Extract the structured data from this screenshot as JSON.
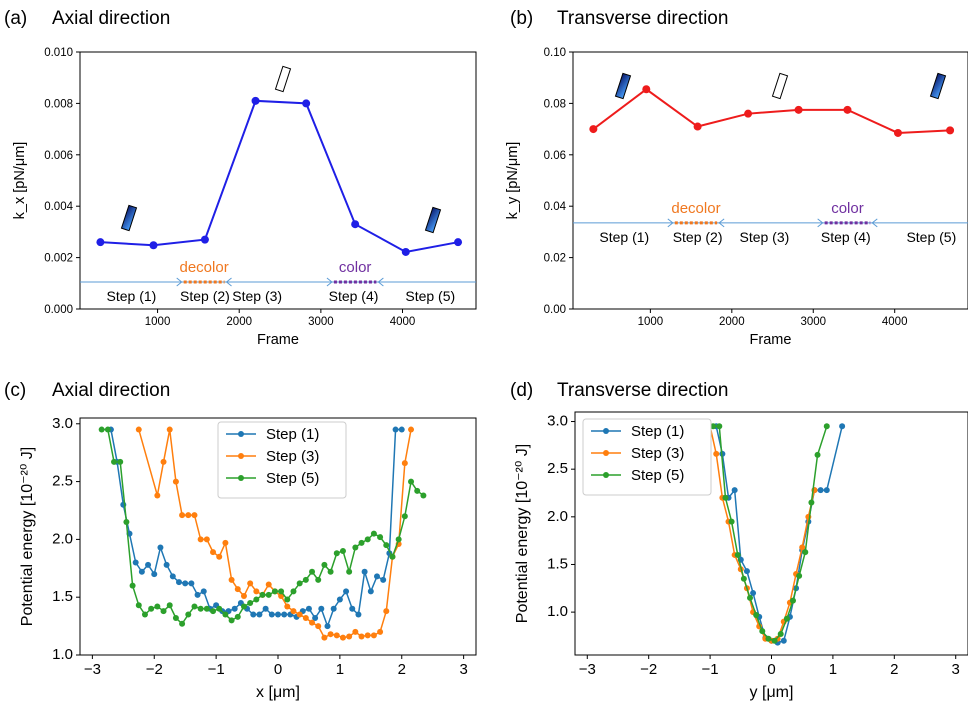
{
  "figure": {
    "panel_a": {
      "tag": "(a)",
      "title": "Axial direction"
    },
    "panel_b": {
      "tag": "(b)",
      "title": "Transverse direction"
    },
    "panel_c": {
      "tag": "(c)",
      "title": "Axial direction"
    },
    "panel_d": {
      "tag": "(d)",
      "title": "Transverse direction"
    }
  },
  "chart_data": [
    {
      "id": "a",
      "type": "line",
      "title": "Axial direction",
      "xlabel": "Frame",
      "ylabel": "k_x [pN/μm]",
      "xlim": [
        50,
        4900
      ],
      "ylim": [
        0,
        0.01
      ],
      "xticks": [
        1000,
        2000,
        3000,
        4000
      ],
      "yticks": [
        "0.000",
        "0.002",
        "0.004",
        "0.006",
        "0.008",
        "0.010"
      ],
      "yticks_values": [
        0,
        0.002,
        0.004,
        0.006,
        0.008,
        0.01
      ],
      "grid": false,
      "color": "#1f1fe6",
      "series": [
        {
          "x": [
            300,
            950,
            1580,
            2200,
            2820,
            3420,
            4040,
            4680
          ],
          "y": [
            0.0026,
            0.00248,
            0.0027,
            0.0081,
            0.008,
            0.0033,
            0.00222,
            0.0026
          ]
        }
      ],
      "steps": {
        "level": 0.00105,
        "labels": [
          "Step (1)",
          "Step (2)",
          "Step (3)",
          "Step (4)",
          "Step (5)"
        ],
        "label_x": [
          680,
          1580,
          2220,
          3400,
          4340
        ],
        "dashed": [
          {
            "label": "decolor",
            "x0": 1320,
            "x1": 1820,
            "color": "#f07820"
          },
          {
            "label": "color",
            "x0": 3160,
            "x1": 3680,
            "color": "#7030a0"
          }
        ]
      }
    },
    {
      "id": "b",
      "type": "line",
      "title": "Transverse direction",
      "xlabel": "Frame",
      "ylabel": "k_y [pN/μm]",
      "xlim": [
        50,
        4900
      ],
      "ylim": [
        0,
        0.1
      ],
      "xticks": [
        1000,
        2000,
        3000,
        4000
      ],
      "yticks": [
        "0.00",
        "0.02",
        "0.04",
        "0.06",
        "0.08",
        "0.10"
      ],
      "yticks_values": [
        0,
        0.02,
        0.04,
        0.06,
        0.08,
        0.1
      ],
      "grid": false,
      "color": "#ee1c1c",
      "series": [
        {
          "x": [
            300,
            950,
            1580,
            2200,
            2820,
            3420,
            4040,
            4680
          ],
          "y": [
            0.07,
            0.0855,
            0.071,
            0.076,
            0.0775,
            0.0775,
            0.0685,
            0.0695
          ]
        }
      ],
      "steps": {
        "level": 0.0335,
        "labels": [
          "Step (1)",
          "Step (2)",
          "Step (3)",
          "Step (4)",
          "Step (5)"
        ],
        "label_x": [
          680,
          1580,
          2400,
          3400,
          4450
        ],
        "dashed": [
          {
            "label": "decolor",
            "x0": 1300,
            "x1": 1820,
            "color": "#f07820"
          },
          {
            "label": "color",
            "x0": 3140,
            "x1": 3700,
            "color": "#7030a0"
          }
        ]
      }
    },
    {
      "id": "c",
      "type": "line",
      "title": "Axial direction",
      "xlabel": "x [μm]",
      "ylabel": "Potential energy [10⁻²⁰ J]",
      "xlim": [
        -3.2,
        3.2
      ],
      "ylim": [
        1.0,
        3.05
      ],
      "xticks": [
        -3,
        -2,
        -1,
        0,
        1,
        2,
        3
      ],
      "xticklabels": [
        "−3",
        "−2",
        "−1",
        "0",
        "1",
        "2",
        "3"
      ],
      "yticks": [
        1.0,
        1.5,
        2.0,
        2.5,
        3.0
      ],
      "yticklabels": [
        "1.0",
        "1.5",
        "2.0",
        "2.5",
        "3.0"
      ],
      "grid": false,
      "legend": "upper-center",
      "series": [
        {
          "name": "Step (1)",
          "color": "#1f77b4",
          "x": [
            -2.7,
            -2.6,
            -2.5,
            -2.4,
            -2.3,
            -2.2,
            -2.1,
            -2.0,
            -1.9,
            -1.8,
            -1.7,
            -1.6,
            -1.5,
            -1.4,
            -1.3,
            -1.2,
            -1.1,
            -1.0,
            -0.9,
            -0.8,
            -0.7,
            -0.6,
            -0.5,
            -0.4,
            -0.3,
            -0.2,
            -0.1,
            0.0,
            0.1,
            0.2,
            0.3,
            0.4,
            0.5,
            0.6,
            0.7,
            0.8,
            0.9,
            1.0,
            1.1,
            1.2,
            1.3,
            1.4,
            1.5,
            1.6,
            1.7,
            1.8,
            1.9,
            2.0
          ],
          "y": [
            2.95,
            2.67,
            2.3,
            2.05,
            1.8,
            1.72,
            1.78,
            1.7,
            1.93,
            1.78,
            1.68,
            1.63,
            1.62,
            1.62,
            1.52,
            1.55,
            1.4,
            1.43,
            1.38,
            1.38,
            1.4,
            1.45,
            1.4,
            1.35,
            1.35,
            1.4,
            1.35,
            1.35,
            1.35,
            1.35,
            1.33,
            1.38,
            1.4,
            1.32,
            1.4,
            1.25,
            1.4,
            1.48,
            1.55,
            1.4,
            1.35,
            1.72,
            1.55,
            1.68,
            1.65,
            1.88,
            2.95,
            2.95
          ]
        },
        {
          "name": "Step (3)",
          "color": "#ff7f0e",
          "x": [
            -2.25,
            -1.95,
            -1.85,
            -1.75,
            -1.65,
            -1.55,
            -1.45,
            -1.35,
            -1.25,
            -1.15,
            -1.05,
            -0.95,
            -0.85,
            -0.75,
            -0.65,
            -0.55,
            -0.45,
            -0.35,
            -0.25,
            -0.15,
            -0.05,
            0.05,
            0.15,
            0.25,
            0.35,
            0.45,
            0.55,
            0.65,
            0.75,
            0.85,
            0.95,
            1.05,
            1.15,
            1.25,
            1.35,
            1.45,
            1.55,
            1.65,
            1.75,
            1.85,
            1.95,
            2.05,
            2.15
          ],
          "y": [
            2.95,
            2.38,
            2.67,
            2.95,
            2.5,
            2.21,
            2.21,
            2.21,
            2.0,
            2.0,
            1.89,
            1.85,
            1.97,
            1.65,
            1.57,
            1.51,
            1.62,
            1.55,
            1.52,
            1.61,
            1.55,
            1.51,
            1.42,
            1.38,
            1.35,
            1.32,
            1.28,
            1.25,
            1.15,
            1.18,
            1.17,
            1.15,
            1.16,
            1.2,
            1.16,
            1.17,
            1.17,
            1.2,
            1.38,
            1.85,
            1.96,
            2.66,
            2.95
          ]
        },
        {
          "name": "Step (5)",
          "color": "#2ca02c",
          "x": [
            -2.85,
            -2.75,
            -2.65,
            -2.55,
            -2.45,
            -2.35,
            -2.25,
            -2.15,
            -2.05,
            -1.95,
            -1.85,
            -1.75,
            -1.65,
            -1.55,
            -1.45,
            -1.35,
            -1.25,
            -1.15,
            -1.05,
            -0.95,
            -0.85,
            -0.75,
            -0.65,
            -0.55,
            -0.45,
            -0.35,
            -0.25,
            -0.15,
            -0.05,
            0.05,
            0.15,
            0.25,
            0.35,
            0.45,
            0.55,
            0.65,
            0.75,
            0.85,
            0.95,
            1.05,
            1.15,
            1.25,
            1.35,
            1.45,
            1.55,
            1.65,
            1.75,
            1.85,
            1.95,
            2.05,
            2.15,
            2.25,
            2.35
          ],
          "y": [
            2.95,
            2.95,
            2.67,
            2.67,
            2.15,
            1.6,
            1.43,
            1.35,
            1.4,
            1.42,
            1.38,
            1.43,
            1.32,
            1.27,
            1.35,
            1.42,
            1.4,
            1.4,
            1.38,
            1.4,
            1.35,
            1.3,
            1.33,
            1.42,
            1.45,
            1.48,
            1.52,
            1.52,
            1.55,
            1.55,
            1.48,
            1.55,
            1.62,
            1.65,
            1.72,
            1.65,
            1.78,
            1.72,
            1.88,
            1.9,
            1.72,
            1.93,
            1.97,
            2.0,
            2.05,
            2.02,
            1.95,
            1.85,
            2.0,
            2.2,
            2.5,
            2.42,
            2.38
          ]
        }
      ]
    },
    {
      "id": "d",
      "type": "line",
      "title": "Transverse direction",
      "xlabel": "y [μm]",
      "ylabel": "Potential energy [10⁻²⁰ J]",
      "xlim": [
        -3.2,
        3.2
      ],
      "ylim": [
        0.55,
        3.1
      ],
      "xticks": [
        -3,
        -2,
        -1,
        0,
        1,
        2,
        3
      ],
      "xticklabels": [
        "−3",
        "−2",
        "−1",
        "0",
        "1",
        "2",
        "3"
      ],
      "yticks": [
        1.0,
        1.5,
        2.0,
        2.5,
        3.0
      ],
      "yticklabels": [
        "1.0",
        "1.5",
        "2.0",
        "2.5",
        "3.0"
      ],
      "grid": false,
      "legend": "upper-left",
      "series": [
        {
          "name": "Step (1)",
          "color": "#1f77b4",
          "x": [
            -0.9,
            -0.8,
            -0.7,
            -0.6,
            -0.5,
            -0.4,
            -0.3,
            -0.2,
            -0.1,
            0.0,
            0.1,
            0.2,
            0.3,
            0.4,
            0.5,
            0.6,
            0.7,
            0.8,
            0.9,
            1.15
          ],
          "y": [
            2.95,
            2.66,
            2.2,
            2.28,
            1.55,
            1.43,
            1.2,
            0.95,
            0.73,
            0.7,
            0.68,
            0.7,
            0.95,
            1.25,
            1.65,
            1.95,
            2.28,
            2.28,
            2.28,
            2.95
          ]
        },
        {
          "name": "Step (3)",
          "color": "#ff7f0e",
          "x": [
            -1.0,
            -0.9,
            -0.8,
            -0.7,
            -0.6,
            -0.5,
            -0.4,
            -0.3,
            -0.2,
            -0.1,
            0.0,
            0.1,
            0.2,
            0.3,
            0.4,
            0.5,
            0.6,
            0.7
          ],
          "y": [
            2.95,
            2.66,
            2.2,
            1.95,
            1.6,
            1.45,
            1.25,
            1.0,
            0.85,
            0.72,
            0.7,
            0.72,
            0.9,
            1.1,
            1.4,
            1.68,
            2.0,
            2.28
          ]
        },
        {
          "name": "Step (5)",
          "color": "#2ca02c",
          "x": [
            -0.95,
            -0.85,
            -0.75,
            -0.65,
            -0.55,
            -0.45,
            -0.35,
            -0.25,
            -0.15,
            -0.05,
            0.05,
            0.15,
            0.25,
            0.35,
            0.45,
            0.55,
            0.65,
            0.75,
            0.9
          ],
          "y": [
            2.95,
            2.95,
            2.2,
            1.95,
            1.6,
            1.35,
            1.15,
            0.97,
            0.8,
            0.72,
            0.7,
            0.77,
            0.93,
            1.12,
            1.38,
            1.63,
            2.15,
            2.65,
            2.95
          ]
        }
      ]
    }
  ]
}
